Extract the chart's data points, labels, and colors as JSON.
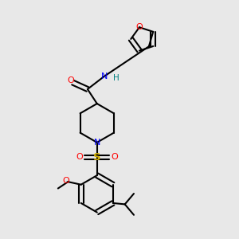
{
  "bg_color": "#e8e8e8",
  "bond_color": "#000000",
  "colors": {
    "O": "#ff0000",
    "N": "#0000ff",
    "S": "#ccaa00",
    "H": "#008080",
    "C": "#000000"
  }
}
